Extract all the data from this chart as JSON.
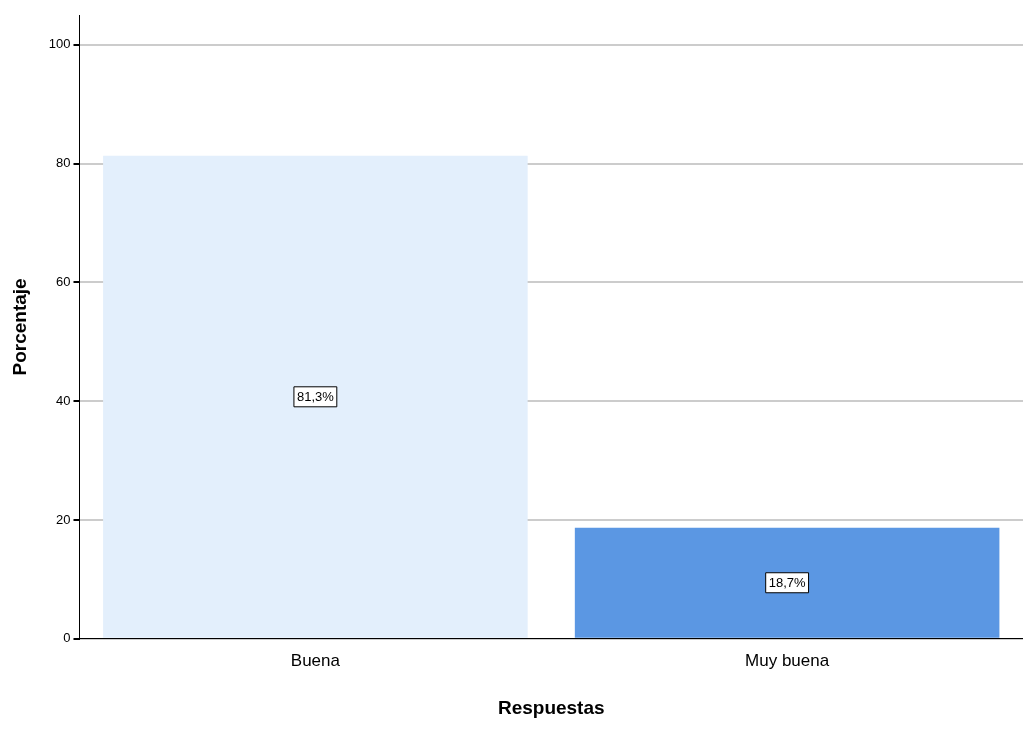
{
  "chart_data": {
    "type": "bar",
    "xlabel": "Respuestas",
    "ylabel": "Porcentaje",
    "categories": [
      "Buena",
      "Muy buena"
    ],
    "values": [
      81.3,
      18.7
    ],
    "colors": [
      "#e3effc",
      "#5b97e3"
    ],
    "value_labels": [
      "81,3%",
      "18,7%"
    ],
    "ylim": [
      0,
      105
    ],
    "yticks": [
      0,
      20,
      40,
      60,
      80,
      100
    ],
    "grid": "y",
    "legend": false
  }
}
